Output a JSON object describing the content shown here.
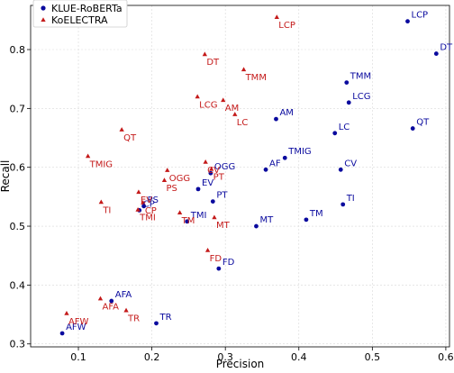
{
  "chart_data": {
    "type": "scatter",
    "xlabel": "Precision",
    "ylabel": "Recall",
    "xlim": [
      0.035,
      0.605
    ],
    "ylim": [
      0.295,
      0.875
    ],
    "xticks": [
      0.1,
      0.2,
      0.3,
      0.4,
      0.5,
      0.6
    ],
    "yticks": [
      0.3,
      0.4,
      0.5,
      0.6,
      0.7,
      0.8
    ],
    "grid": true,
    "legend_position": "top-left",
    "series": [
      {
        "name": "KLUE-RoBERTa",
        "color": "#0a0a9e",
        "marker": "circle",
        "points": [
          {
            "label": "LCP",
            "x": 0.548,
            "y": 0.848
          },
          {
            "label": "DT",
            "x": 0.587,
            "y": 0.793
          },
          {
            "label": "TMM",
            "x": 0.465,
            "y": 0.744
          },
          {
            "label": "LCG",
            "x": 0.468,
            "y": 0.71
          },
          {
            "label": "AM",
            "x": 0.369,
            "y": 0.682
          },
          {
            "label": "QT",
            "x": 0.555,
            "y": 0.666
          },
          {
            "label": "LC",
            "x": 0.449,
            "y": 0.658
          },
          {
            "label": "TMIG",
            "x": 0.381,
            "y": 0.616
          },
          {
            "label": "AF",
            "x": 0.355,
            "y": 0.596
          },
          {
            "label": "CV",
            "x": 0.457,
            "y": 0.596
          },
          {
            "label": "OGG",
            "x": 0.28,
            "y": 0.59
          },
          {
            "label": "EV",
            "x": 0.263,
            "y": 0.563
          },
          {
            "label": "PT",
            "x": 0.283,
            "y": 0.542
          },
          {
            "label": "TI",
            "x": 0.46,
            "y": 0.537
          },
          {
            "label": "PS",
            "x": 0.189,
            "y": 0.534
          },
          {
            "label": "CP",
            "x": 0.183,
            "y": 0.527
          },
          {
            "label": "TMI",
            "x": 0.248,
            "y": 0.508
          },
          {
            "label": "TM",
            "x": 0.41,
            "y": 0.511
          },
          {
            "label": "MT",
            "x": 0.342,
            "y": 0.5
          },
          {
            "label": "FD",
            "x": 0.291,
            "y": 0.428
          },
          {
            "label": "AFA",
            "x": 0.145,
            "y": 0.373
          },
          {
            "label": "TR",
            "x": 0.206,
            "y": 0.335
          },
          {
            "label": "AFW",
            "x": 0.078,
            "y": 0.318
          }
        ]
      },
      {
        "name": "KoELECTRA",
        "color": "#c41a1a",
        "marker": "triangle",
        "points": [
          {
            "label": "LCP",
            "x": 0.37,
            "y": 0.855
          },
          {
            "label": "DT",
            "x": 0.272,
            "y": 0.792
          },
          {
            "label": "TMM",
            "x": 0.325,
            "y": 0.766
          },
          {
            "label": "LCG",
            "x": 0.262,
            "y": 0.72
          },
          {
            "label": "AM",
            "x": 0.297,
            "y": 0.714
          },
          {
            "label": "LC",
            "x": 0.313,
            "y": 0.69
          },
          {
            "label": "QT",
            "x": 0.159,
            "y": 0.664
          },
          {
            "label": "TMIG",
            "x": 0.113,
            "y": 0.619
          },
          {
            "label": "CV",
            "x": 0.273,
            "y": 0.609
          },
          {
            "label": "OGG",
            "x": 0.221,
            "y": 0.595
          },
          {
            "label": "PS",
            "x": 0.217,
            "y": 0.578
          },
          {
            "label": "PT",
            "x": 0.281,
            "y": 0.597
          },
          {
            "label": "TI",
            "x": 0.131,
            "y": 0.541
          },
          {
            "label": "EV",
            "x": 0.182,
            "y": 0.558
          },
          {
            "label": "TMI",
            "x": 0.181,
            "y": 0.528
          },
          {
            "label": "CP",
            "x": 0.188,
            "y": 0.54
          },
          {
            "label": "TM",
            "x": 0.238,
            "y": 0.523
          },
          {
            "label": "MT",
            "x": 0.285,
            "y": 0.515
          },
          {
            "label": "FD",
            "x": 0.276,
            "y": 0.459
          },
          {
            "label": "AFA",
            "x": 0.13,
            "y": 0.377
          },
          {
            "label": "TR",
            "x": 0.165,
            "y": 0.357
          },
          {
            "label": "AFW",
            "x": 0.084,
            "y": 0.352
          }
        ]
      }
    ]
  }
}
